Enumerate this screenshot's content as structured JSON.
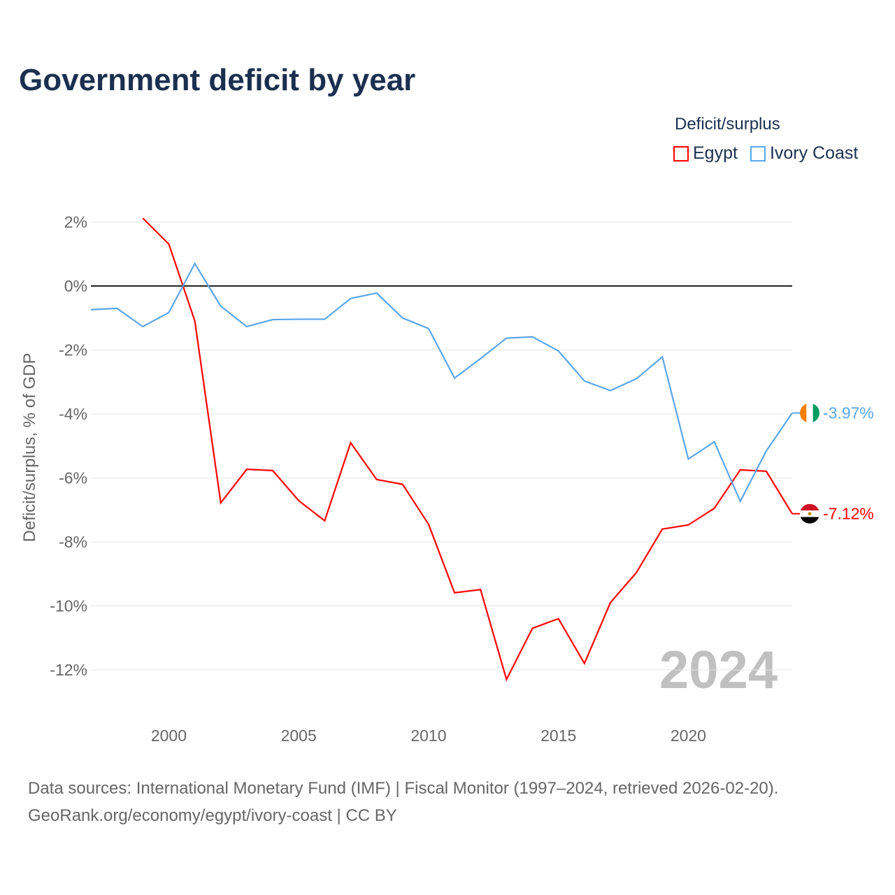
{
  "title": "Government deficit by year",
  "legend": {
    "title": "Deficit/surplus",
    "items": [
      {
        "name": "Egypt",
        "color": "#ff0000"
      },
      {
        "name": "Ivory Coast",
        "color": "#5aa6ea"
      }
    ]
  },
  "source_line1": "Data sources: International Monetary Fund (IMF) | Fiscal Monitor (1997–2024, retrieved 2026-02-20).",
  "source_line2": "GeoRank.org/economy/egypt/ivory-coast | CC BY",
  "watermark_year": "2024",
  "chart_data": {
    "type": "line",
    "title": "Government deficit by year",
    "xlabel": "",
    "ylabel": "Deficit/surplus, % of GDP",
    "xlim": [
      1997,
      2024
    ],
    "ylim": [
      -13,
      2.4
    ],
    "x_ticks": [
      2000,
      2005,
      2010,
      2015,
      2020
    ],
    "y_ticks": [
      {
        "v": 2,
        "label": "2%"
      },
      {
        "v": 0,
        "label": "0%"
      },
      {
        "v": -2,
        "label": "-2%"
      },
      {
        "v": -4,
        "label": "-4%"
      },
      {
        "v": -6,
        "label": "-6%"
      },
      {
        "v": -8,
        "label": "-8%"
      },
      {
        "v": -10,
        "label": "-10%"
      },
      {
        "v": -12,
        "label": "-12%"
      }
    ],
    "grid": true,
    "legend_position": "top-right",
    "series": [
      {
        "name": "Egypt",
        "color": "#ff0000",
        "end_label": "-7.12%",
        "x": [
          1999,
          2000,
          2001,
          2002,
          2003,
          2004,
          2005,
          2006,
          2007,
          2008,
          2009,
          2010,
          2011,
          2012,
          2013,
          2014,
          2015,
          2016,
          2017,
          2018,
          2019,
          2020,
          2021,
          2022,
          2023,
          2024
        ],
        "values": [
          2.12,
          1.31,
          -1.09,
          -6.78,
          -5.73,
          -5.77,
          -6.71,
          -7.34,
          -4.9,
          -6.05,
          -6.2,
          -7.45,
          -9.59,
          -9.49,
          -12.3,
          -10.7,
          -10.4,
          -11.8,
          -9.9,
          -8.96,
          -7.6,
          -7.47,
          -6.95,
          -5.75,
          -5.79,
          -7.12
        ]
      },
      {
        "name": "Ivory Coast",
        "color": "#5aa6ea",
        "end_label": "-3.97%",
        "x": [
          1997,
          1998,
          1999,
          2000,
          2001,
          2002,
          2003,
          2004,
          2005,
          2006,
          2007,
          2008,
          2009,
          2010,
          2011,
          2012,
          2013,
          2014,
          2015,
          2016,
          2017,
          2018,
          2019,
          2020,
          2021,
          2022,
          2023,
          2024
        ],
        "values": [
          -0.74,
          -0.7,
          -1.27,
          -0.83,
          0.7,
          -0.63,
          -1.27,
          -1.05,
          -1.04,
          -1.04,
          -0.39,
          -0.22,
          -1.0,
          -1.33,
          -2.88,
          -2.27,
          -1.63,
          -1.59,
          -2.03,
          -2.97,
          -3.27,
          -2.9,
          -2.22,
          -5.41,
          -4.87,
          -6.73,
          -5.16,
          -3.97
        ]
      }
    ]
  }
}
